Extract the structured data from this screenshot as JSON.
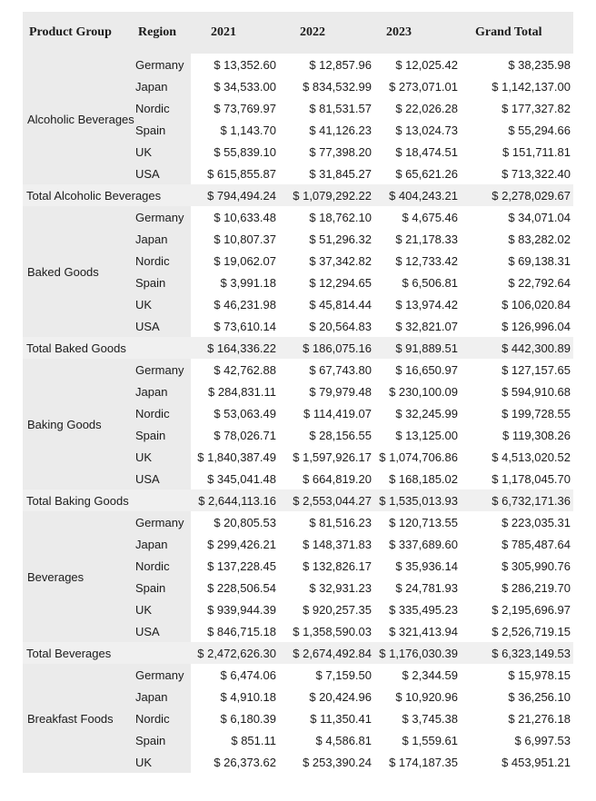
{
  "colors": {
    "page_background": "#ffffff",
    "header_background": "#ebebeb",
    "side_column_background": "#ebebeb",
    "total_row_background": "#f0f0f0",
    "text": "#1b1b1b"
  },
  "table": {
    "header": {
      "product_group": "Product Group",
      "region": "Region",
      "y2021": "2021",
      "y2022": "2022",
      "y2023": "2023",
      "grand_total": "Grand Total"
    },
    "groups": [
      {
        "name": "Alcoholic Beverages",
        "rows": [
          {
            "region": "Germany",
            "values": [
              "$ 13,352.60",
              "$ 12,857.96",
              "$ 12,025.42",
              "$ 38,235.98"
            ]
          },
          {
            "region": "Japan",
            "values": [
              "$ 34,533.00",
              "$ 834,532.99",
              "$ 273,071.01",
              "$ 1,142,137.00"
            ]
          },
          {
            "region": "Nordic",
            "values": [
              "$ 73,769.97",
              "$ 81,531.57",
              "$ 22,026.28",
              "$ 177,327.82"
            ]
          },
          {
            "region": "Spain",
            "values": [
              "$ 1,143.70",
              "$ 41,126.23",
              "$ 13,024.73",
              "$ 55,294.66"
            ]
          },
          {
            "region": "UK",
            "values": [
              "$ 55,839.10",
              "$ 77,398.20",
              "$ 18,474.51",
              "$ 151,711.81"
            ]
          },
          {
            "region": "USA",
            "values": [
              "$ 615,855.87",
              "$ 31,845.27",
              "$ 65,621.26",
              "$ 713,322.40"
            ]
          }
        ],
        "total": {
          "label": "Total Alcoholic Beverages",
          "values": [
            "$ 794,494.24",
            "$ 1,079,292.22",
            "$ 404,243.21",
            "$ 2,278,029.67"
          ]
        }
      },
      {
        "name": "Baked Goods",
        "rows": [
          {
            "region": "Germany",
            "values": [
              "$ 10,633.48",
              "$ 18,762.10",
              "$ 4,675.46",
              "$ 34,071.04"
            ]
          },
          {
            "region": "Japan",
            "values": [
              "$ 10,807.37",
              "$ 51,296.32",
              "$ 21,178.33",
              "$ 83,282.02"
            ]
          },
          {
            "region": "Nordic",
            "values": [
              "$ 19,062.07",
              "$ 37,342.82",
              "$ 12,733.42",
              "$ 69,138.31"
            ]
          },
          {
            "region": "Spain",
            "values": [
              "$ 3,991.18",
              "$ 12,294.65",
              "$ 6,506.81",
              "$ 22,792.64"
            ]
          },
          {
            "region": "UK",
            "values": [
              "$ 46,231.98",
              "$ 45,814.44",
              "$ 13,974.42",
              "$ 106,020.84"
            ]
          },
          {
            "region": "USA",
            "values": [
              "$ 73,610.14",
              "$ 20,564.83",
              "$ 32,821.07",
              "$ 126,996.04"
            ]
          }
        ],
        "total": {
          "label": "Total Baked Goods",
          "values": [
            "$ 164,336.22",
            "$ 186,075.16",
            "$ 91,889.51",
            "$ 442,300.89"
          ]
        }
      },
      {
        "name": "Baking Goods",
        "rows": [
          {
            "region": "Germany",
            "values": [
              "$ 42,762.88",
              "$ 67,743.80",
              "$ 16,650.97",
              "$ 127,157.65"
            ]
          },
          {
            "region": "Japan",
            "values": [
              "$ 284,831.11",
              "$ 79,979.48",
              "$ 230,100.09",
              "$ 594,910.68"
            ]
          },
          {
            "region": "Nordic",
            "values": [
              "$ 53,063.49",
              "$ 114,419.07",
              "$ 32,245.99",
              "$ 199,728.55"
            ]
          },
          {
            "region": "Spain",
            "values": [
              "$ 78,026.71",
              "$ 28,156.55",
              "$ 13,125.00",
              "$ 119,308.26"
            ]
          },
          {
            "region": "UK",
            "values": [
              "$ 1,840,387.49",
              "$ 1,597,926.17",
              "$ 1,074,706.86",
              "$ 4,513,020.52"
            ]
          },
          {
            "region": "USA",
            "values": [
              "$ 345,041.48",
              "$ 664,819.20",
              "$ 168,185.02",
              "$ 1,178,045.70"
            ]
          }
        ],
        "total": {
          "label": "Total Baking Goods",
          "values": [
            "$ 2,644,113.16",
            "$ 2,553,044.27",
            "$ 1,535,013.93",
            "$ 6,732,171.36"
          ]
        }
      },
      {
        "name": "Beverages",
        "rows": [
          {
            "region": "Germany",
            "values": [
              "$ 20,805.53",
              "$ 81,516.23",
              "$ 120,713.55",
              "$ 223,035.31"
            ]
          },
          {
            "region": "Japan",
            "values": [
              "$ 299,426.21",
              "$ 148,371.83",
              "$ 337,689.60",
              "$ 785,487.64"
            ]
          },
          {
            "region": "Nordic",
            "values": [
              "$ 137,228.45",
              "$ 132,826.17",
              "$ 35,936.14",
              "$ 305,990.76"
            ]
          },
          {
            "region": "Spain",
            "values": [
              "$ 228,506.54",
              "$ 32,931.23",
              "$ 24,781.93",
              "$ 286,219.70"
            ]
          },
          {
            "region": "UK",
            "values": [
              "$ 939,944.39",
              "$ 920,257.35",
              "$ 335,495.23",
              "$ 2,195,696.97"
            ]
          },
          {
            "region": "USA",
            "values": [
              "$ 846,715.18",
              "$ 1,358,590.03",
              "$ 321,413.94",
              "$ 2,526,719.15"
            ]
          }
        ],
        "total": {
          "label": "Total Beverages",
          "values": [
            "$ 2,472,626.30",
            "$ 2,674,492.84",
            "$ 1,176,030.39",
            "$ 6,323,149.53"
          ]
        }
      },
      {
        "name": "Breakfast Foods",
        "rows": [
          {
            "region": "Germany",
            "values": [
              "$ 6,474.06",
              "$ 7,159.50",
              "$ 2,344.59",
              "$ 15,978.15"
            ]
          },
          {
            "region": "Japan",
            "values": [
              "$ 4,910.18",
              "$ 20,424.96",
              "$ 10,920.96",
              "$ 36,256.10"
            ]
          },
          {
            "region": "Nordic",
            "values": [
              "$ 6,180.39",
              "$ 11,350.41",
              "$ 3,745.38",
              "$ 21,276.18"
            ]
          },
          {
            "region": "Spain",
            "values": [
              "$ 851.11",
              "$ 4,586.81",
              "$ 1,559.61",
              "$ 6,997.53"
            ]
          },
          {
            "region": "UK",
            "values": [
              "$ 26,373.62",
              "$ 253,390.24",
              "$ 174,187.35",
              "$ 453,951.21"
            ]
          }
        ],
        "total": null
      }
    ]
  }
}
